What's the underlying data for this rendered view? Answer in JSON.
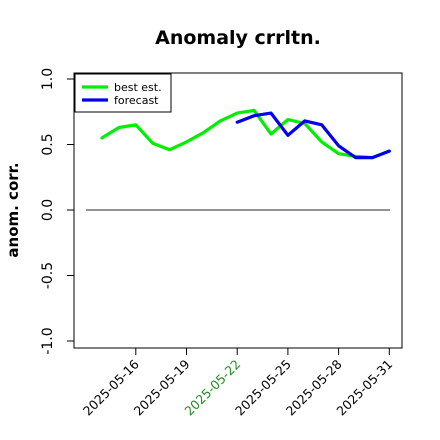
{
  "chart_data": {
    "type": "line",
    "title": "Anomaly crrltn.",
    "xlabel": "",
    "ylabel": "anom. corr.",
    "ylim": [
      -1.0,
      1.0
    ],
    "yticks": [
      "-1.0",
      "-0.5",
      "0.0",
      "0.5",
      "1.0"
    ],
    "x": [
      "2025-05-14",
      "2025-05-15",
      "2025-05-16",
      "2025-05-17",
      "2025-05-18",
      "2025-05-19",
      "2025-05-20",
      "2025-05-21",
      "2025-05-22",
      "2025-05-23",
      "2025-05-24",
      "2025-05-25",
      "2025-05-26",
      "2025-05-27",
      "2025-05-28",
      "2025-05-29",
      "2025-05-30",
      "2025-05-31"
    ],
    "xticks": [
      {
        "label": "2025-05-16",
        "color": "#000000"
      },
      {
        "label": "2025-05-19",
        "color": "#000000"
      },
      {
        "label": "2025-05-22",
        "color": "#228B22"
      },
      {
        "label": "2025-05-25",
        "color": "#000000"
      },
      {
        "label": "2025-05-28",
        "color": "#000000"
      },
      {
        "label": "2025-05-31",
        "color": "#000000"
      }
    ],
    "reference_line": 0.0,
    "series": [
      {
        "name": "best est.",
        "color": "#00ee00",
        "x": [
          "2025-05-14",
          "2025-05-15",
          "2025-05-16",
          "2025-05-17",
          "2025-05-18",
          "2025-05-19",
          "2025-05-20",
          "2025-05-21",
          "2025-05-22",
          "2025-05-23",
          "2025-05-24",
          "2025-05-25",
          "2025-05-26",
          "2025-05-27",
          "2025-05-28",
          "2025-05-29",
          "2025-05-30",
          "2025-05-31"
        ],
        "values": [
          0.55,
          0.63,
          0.65,
          0.51,
          0.46,
          0.52,
          0.59,
          0.68,
          0.74,
          0.76,
          0.58,
          0.69,
          0.66,
          0.52,
          0.43,
          0.41,
          0.4,
          0.45
        ]
      },
      {
        "name": "forecast",
        "color": "#0000ee",
        "x": [
          "2025-05-22",
          "2025-05-23",
          "2025-05-24",
          "2025-05-25",
          "2025-05-26",
          "2025-05-27",
          "2025-05-28",
          "2025-05-29",
          "2025-05-30",
          "2025-05-31"
        ],
        "values": [
          0.67,
          0.72,
          0.74,
          0.57,
          0.68,
          0.65,
          0.49,
          0.4,
          0.4,
          0.45
        ]
      }
    ],
    "grid": false,
    "legend": "top-left"
  }
}
